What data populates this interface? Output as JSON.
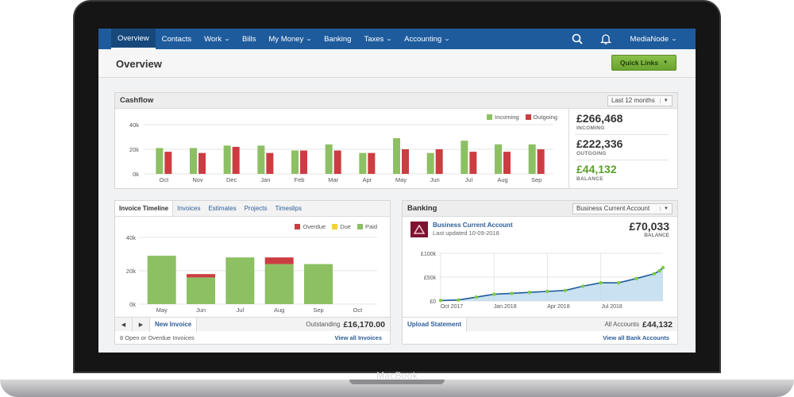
{
  "device": {
    "brand": "MacBook"
  },
  "nav": {
    "items": [
      {
        "label": "Overview",
        "active": true,
        "dropdown": false
      },
      {
        "label": "Contacts",
        "active": false,
        "dropdown": false
      },
      {
        "label": "Work",
        "active": false,
        "dropdown": true
      },
      {
        "label": "Bills",
        "active": false,
        "dropdown": false
      },
      {
        "label": "My Money",
        "active": false,
        "dropdown": true
      },
      {
        "label": "Banking",
        "active": false,
        "dropdown": false
      },
      {
        "label": "Taxes",
        "active": false,
        "dropdown": true
      },
      {
        "label": "Accounting",
        "active": false,
        "dropdown": true
      }
    ],
    "account_label": "MediaNode",
    "search_icon": "search-icon",
    "bell_icon": "bell-icon"
  },
  "page": {
    "title": "Overview",
    "quick_links_label": "Quick Links"
  },
  "colors": {
    "nav_bg": "#1e5b9c",
    "incoming": "#8cc063",
    "outgoing": "#cc3d41",
    "paid": "#8cc063",
    "due": "#f4d03f",
    "overdue": "#cc3d41",
    "accent_green": "#5a9e2e",
    "banking_line": "#1e5b9c",
    "banking_fill": "#bcd9ee",
    "banking_points": "#7fcc3e"
  },
  "cashflow": {
    "title": "Cashflow",
    "period_select": "Last 12 months",
    "legend": {
      "incoming": "Incoming",
      "outgoing": "Outgoing"
    },
    "stats": {
      "incoming_value": "£266,468",
      "incoming_label": "INCOMING",
      "outgoing_value": "£222,336",
      "outgoing_label": "OUTGOING",
      "balance_value": "£44,132",
      "balance_label": "BALANCE"
    }
  },
  "invoices": {
    "tabs": [
      {
        "label": "Invoice Timeline",
        "active": true
      },
      {
        "label": "Invoices",
        "active": false
      },
      {
        "label": "Estimates",
        "active": false
      },
      {
        "label": "Projects",
        "active": false
      },
      {
        "label": "Timeslips",
        "active": false
      }
    ],
    "legend": {
      "overdue": "Overdue",
      "due": "Due",
      "paid": "Paid"
    },
    "new_invoice_label": "New Invoice",
    "outstanding_label": "Outstanding",
    "outstanding_value": "£16,170.00",
    "open_overdue_text": "8 Open or Overdue Invoices",
    "view_all_label": "View all Invoices"
  },
  "banking": {
    "title": "Banking",
    "account_select": "Business Current Account",
    "account_name": "Business Current Account",
    "last_updated": "Last updated 10-09-2018",
    "balance_value": "£70,033",
    "balance_label": "BALANCE",
    "upload_label": "Upload Statement",
    "all_accounts_label": "All Accounts",
    "all_accounts_value": "£44,132",
    "view_all_label": "View all Bank Accounts"
  },
  "chart_data": [
    {
      "type": "bar",
      "title": "Cashflow",
      "categories": [
        "Oct",
        "Nov",
        "Dec",
        "Jan",
        "Feb",
        "Mar",
        "Apr",
        "May",
        "Jun",
        "Jul",
        "Aug",
        "Sep"
      ],
      "series": [
        {
          "name": "Incoming",
          "values": [
            21000,
            21000,
            23000,
            23000,
            19000,
            24000,
            17000,
            29000,
            17000,
            27000,
            24000,
            24000
          ]
        },
        {
          "name": "Outgoing",
          "values": [
            18000,
            17000,
            22000,
            17000,
            19000,
            19000,
            17000,
            20000,
            20000,
            18000,
            18000,
            20000
          ]
        }
      ],
      "yticks": [
        "0k",
        "20k",
        "40k"
      ],
      "ylim": [
        0,
        40000
      ],
      "grid": true,
      "legend_position": "top-right"
    },
    {
      "type": "bar",
      "title": "Invoice Timeline",
      "categories": [
        "May",
        "Jun",
        "Jul",
        "Aug",
        "Sep",
        "Oct"
      ],
      "stacked": true,
      "series": [
        {
          "name": "Paid",
          "values": [
            29000,
            16000,
            28000,
            24000,
            24000,
            0
          ]
        },
        {
          "name": "Due",
          "values": [
            0,
            0,
            0,
            0,
            0,
            0
          ]
        },
        {
          "name": "Overdue",
          "values": [
            0,
            2000,
            0,
            4000,
            0,
            0
          ]
        }
      ],
      "yticks": [
        "0k",
        "20k",
        "40k"
      ],
      "ylim": [
        0,
        40000
      ],
      "grid": true,
      "legend_position": "top-right"
    },
    {
      "type": "area",
      "title": "Banking",
      "x_ticks": [
        "Oct 2017",
        "Jan 2018",
        "Apr 2018",
        "Jul 2018"
      ],
      "yticks": [
        "£0",
        "£50k",
        "£100k"
      ],
      "ylim": [
        0,
        100000
      ],
      "x": [
        0,
        1,
        2,
        3,
        4,
        5,
        6,
        7,
        8,
        9,
        10,
        11,
        12,
        12.3,
        12.5
      ],
      "values": [
        1000,
        2000,
        8000,
        14000,
        16000,
        18000,
        20000,
        22000,
        31000,
        38000,
        38000,
        47000,
        57000,
        63000,
        70000
      ],
      "grid": true
    }
  ]
}
